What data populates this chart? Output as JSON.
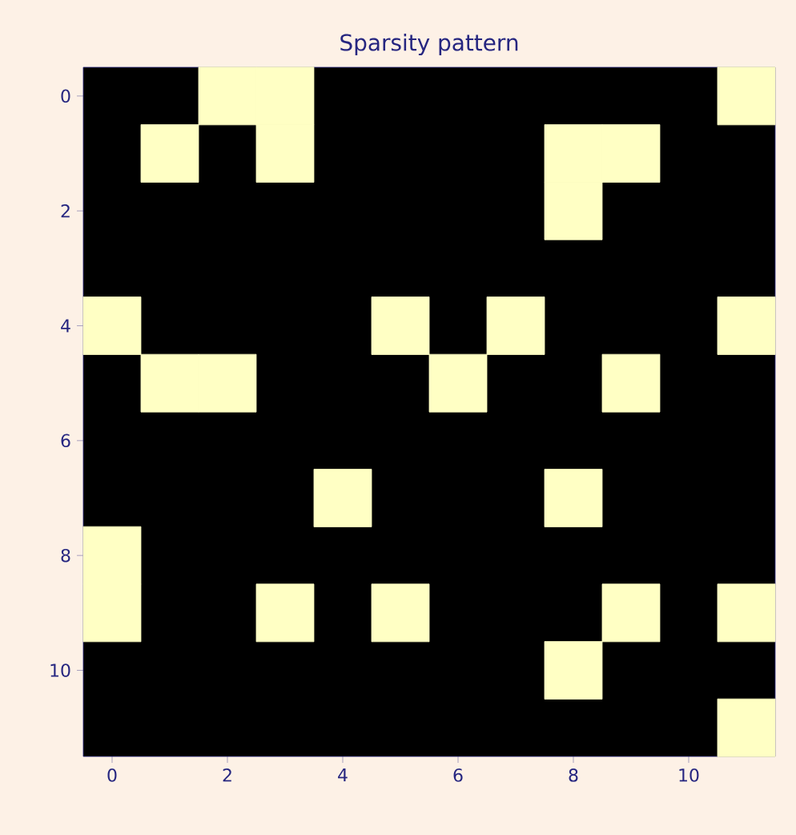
{
  "chart_data": {
    "type": "scatter",
    "title": "Sparsity pattern",
    "marker": "square",
    "color": "#ffffc4",
    "x": [
      2,
      3,
      11,
      1,
      3,
      8,
      9,
      8,
      0,
      5,
      7,
      11,
      1,
      2,
      6,
      9,
      4,
      8,
      0,
      0,
      3,
      5,
      9,
      11,
      8,
      11
    ],
    "values": [
      0,
      0,
      0,
      1,
      1,
      1,
      1,
      2,
      4,
      4,
      4,
      4,
      5,
      5,
      5,
      5,
      7,
      7,
      8,
      9,
      9,
      9,
      9,
      9,
      10,
      11
    ],
    "xlim": [
      -0.5,
      11.5
    ],
    "ylim": [
      11.5,
      -0.5
    ],
    "xticks": [
      0,
      2,
      4,
      6,
      8,
      10
    ],
    "yticks": [
      0,
      2,
      4,
      6,
      8,
      10
    ]
  }
}
